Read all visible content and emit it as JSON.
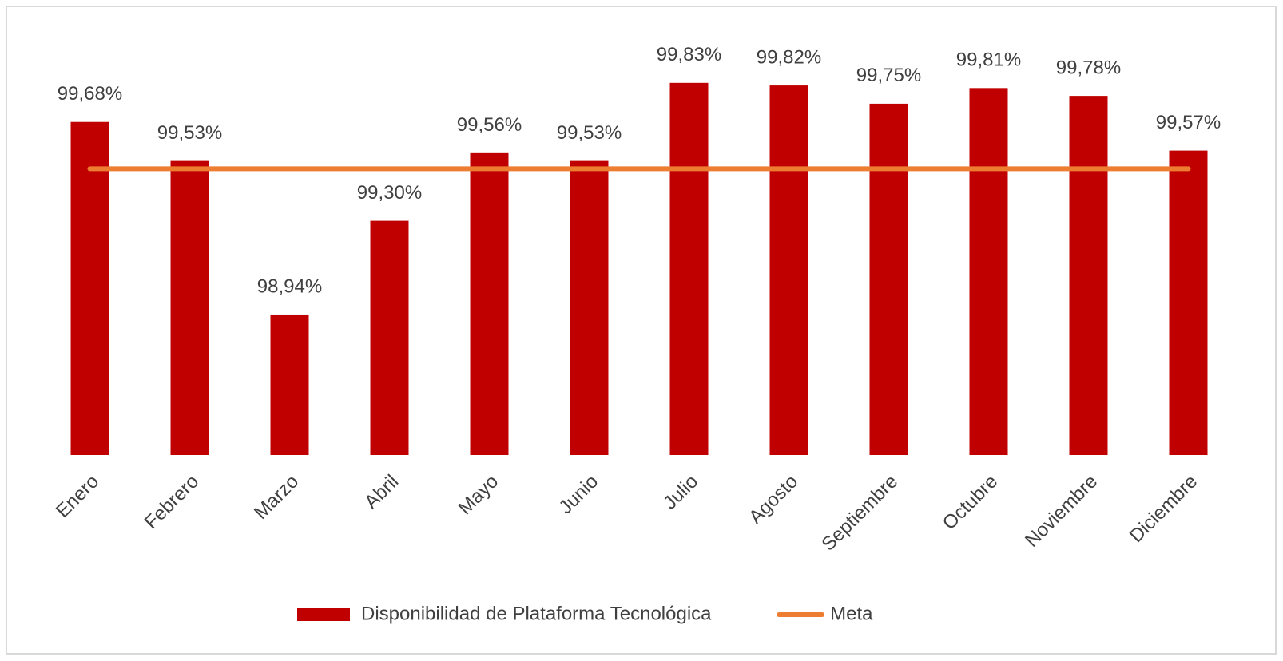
{
  "chart_data": {
    "type": "bar",
    "categories": [
      "Enero",
      "Febrero",
      "Marzo",
      "Abril",
      "Mayo",
      "Junio",
      "Julio",
      "Agosto",
      "Septiembre",
      "Octubre",
      "Noviembre",
      "Diciembre"
    ],
    "series": [
      {
        "name": "Disponibilidad de Plataforma Tecnológica",
        "type": "bar",
        "color": "#c00000",
        "values": [
          99.68,
          99.53,
          98.94,
          99.3,
          99.56,
          99.53,
          99.83,
          99.82,
          99.75,
          99.81,
          99.78,
          99.57
        ],
        "value_labels": [
          "99,68%",
          "99,53%",
          "98,94%",
          "99,30%",
          "99,56%",
          "99,53%",
          "99,83%",
          "99,82%",
          "99,75%",
          "99,81%",
          "99,78%",
          "99,57%"
        ]
      },
      {
        "name": "Meta",
        "type": "line",
        "color": "#ed7d31",
        "values": [
          99.5,
          99.5,
          99.5,
          99.5,
          99.5,
          99.5,
          99.5,
          99.5,
          99.5,
          99.5,
          99.5,
          99.5
        ]
      }
    ],
    "ylim": [
      98.4,
      99.9
    ],
    "legend": "bottom"
  }
}
